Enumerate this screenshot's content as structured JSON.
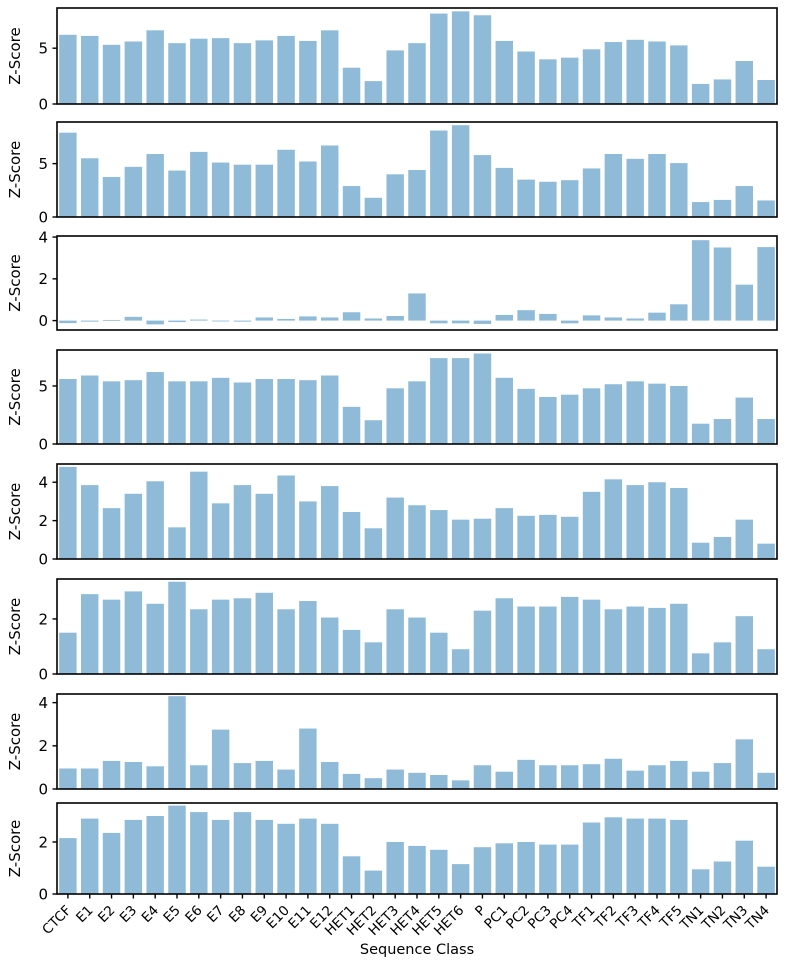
{
  "figure": {
    "xlabel": "Sequence Class",
    "ylabel": "Z-Score",
    "bar_color": "#8fbbd9",
    "axis_color": "#000000"
  },
  "chart_data": {
    "type": "bar",
    "title": "",
    "xlabel": "Sequence Class",
    "ylabel": "Z-Score",
    "legend": "none",
    "grid": false,
    "bar_color": "#8fbbd9",
    "categories": [
      "CTCF",
      "E1",
      "E2",
      "E3",
      "E4",
      "E5",
      "E6",
      "E7",
      "E8",
      "E9",
      "E10",
      "E11",
      "E12",
      "HET1",
      "HET2",
      "HET3",
      "HET4",
      "HET5",
      "HET6",
      "P",
      "PC1",
      "PC2",
      "PC3",
      "PC4",
      "TF1",
      "TF2",
      "TF3",
      "TF4",
      "TF5",
      "TN1",
      "TN2",
      "TN3",
      "TN4"
    ],
    "panels": [
      {
        "ylabel": "Z-Score",
        "ylim": [
          0,
          8.6
        ],
        "yticks": [
          0,
          5
        ],
        "values": [
          6.2,
          6.1,
          5.3,
          5.6,
          6.6,
          5.45,
          5.85,
          5.9,
          5.45,
          5.7,
          6.1,
          5.65,
          6.6,
          3.25,
          2.05,
          4.8,
          5.45,
          8.1,
          8.3,
          7.95,
          5.65,
          4.7,
          4.0,
          4.15,
          4.9,
          5.55,
          5.75,
          5.6,
          5.25,
          1.8,
          2.2,
          3.85,
          2.15
        ]
      },
      {
        "ylabel": "Z-Score",
        "ylim": [
          0,
          8.9
        ],
        "yticks": [
          0,
          5
        ],
        "values": [
          7.9,
          5.5,
          3.75,
          4.7,
          5.9,
          4.35,
          6.1,
          5.1,
          4.9,
          4.9,
          6.3,
          5.2,
          6.7,
          2.9,
          1.8,
          4.0,
          4.4,
          8.1,
          8.6,
          5.8,
          4.6,
          3.5,
          3.3,
          3.45,
          4.55,
          5.9,
          5.45,
          5.9,
          5.05,
          1.4,
          1.6,
          2.9,
          1.55
        ]
      },
      {
        "ylabel": "Z-Score",
        "ylim": [
          -0.45,
          4.05
        ],
        "yticks": [
          0,
          2,
          4
        ],
        "values": [
          -0.12,
          -0.05,
          0.03,
          0.18,
          -0.18,
          -0.07,
          0.05,
          -0.04,
          -0.05,
          0.15,
          0.08,
          0.2,
          0.15,
          0.4,
          0.1,
          0.22,
          1.3,
          -0.13,
          -0.13,
          -0.16,
          0.27,
          0.5,
          0.32,
          -0.13,
          0.25,
          0.15,
          0.1,
          0.38,
          0.78,
          3.85,
          3.5,
          1.72,
          3.52
        ]
      },
      {
        "ylabel": "Z-Score",
        "ylim": [
          0,
          8.1
        ],
        "yticks": [
          0,
          5
        ],
        "values": [
          5.6,
          5.9,
          5.4,
          5.5,
          6.2,
          5.4,
          5.4,
          5.7,
          5.3,
          5.6,
          5.6,
          5.5,
          5.9,
          3.2,
          2.05,
          4.8,
          5.4,
          7.4,
          7.4,
          7.8,
          5.7,
          4.75,
          4.05,
          4.25,
          4.8,
          5.15,
          5.4,
          5.2,
          5.0,
          1.75,
          2.15,
          4.0,
          2.15
        ]
      },
      {
        "ylabel": "Z-Score",
        "ylim": [
          0,
          4.95
        ],
        "yticks": [
          0,
          2,
          4
        ],
        "values": [
          4.8,
          3.85,
          2.65,
          3.4,
          4.05,
          1.65,
          4.55,
          2.9,
          3.85,
          3.4,
          4.35,
          3.0,
          3.8,
          2.45,
          1.6,
          3.2,
          2.8,
          2.55,
          2.05,
          2.1,
          2.65,
          2.25,
          2.3,
          2.2,
          3.5,
          4.15,
          3.85,
          4.0,
          3.7,
          0.85,
          1.15,
          2.05,
          0.8
        ]
      },
      {
        "ylabel": "Z-Score",
        "ylim": [
          0,
          3.45
        ],
        "yticks": [
          0,
          2
        ],
        "values": [
          1.5,
          2.9,
          2.7,
          3.0,
          2.55,
          3.35,
          2.35,
          2.7,
          2.75,
          2.95,
          2.35,
          2.65,
          2.05,
          1.6,
          1.15,
          2.35,
          2.05,
          1.5,
          0.9,
          2.3,
          2.75,
          2.45,
          2.45,
          2.8,
          2.7,
          2.35,
          2.45,
          2.4,
          2.55,
          0.75,
          1.15,
          2.1,
          0.9
        ]
      },
      {
        "ylabel": "Z-Score",
        "ylim": [
          0,
          4.4
        ],
        "yticks": [
          0,
          2,
          4
        ],
        "values": [
          0.95,
          0.95,
          1.3,
          1.25,
          1.05,
          4.3,
          1.1,
          2.75,
          1.2,
          1.3,
          0.9,
          2.8,
          1.25,
          0.7,
          0.5,
          0.9,
          0.75,
          0.65,
          0.4,
          1.1,
          0.8,
          1.35,
          1.1,
          1.1,
          1.15,
          1.4,
          0.85,
          1.1,
          1.3,
          0.8,
          1.2,
          2.3,
          0.75
        ]
      },
      {
        "ylabel": "Z-Score",
        "ylim": [
          0,
          3.5
        ],
        "yticks": [
          0,
          2
        ],
        "values": [
          2.15,
          2.9,
          2.35,
          2.85,
          3.0,
          3.4,
          3.15,
          2.85,
          3.15,
          2.85,
          2.7,
          2.9,
          2.7,
          1.45,
          0.9,
          2.0,
          1.85,
          1.7,
          1.15,
          1.8,
          1.95,
          2.0,
          1.9,
          1.9,
          2.75,
          2.95,
          2.9,
          2.9,
          2.85,
          0.95,
          1.25,
          2.05,
          1.05
        ]
      }
    ]
  }
}
